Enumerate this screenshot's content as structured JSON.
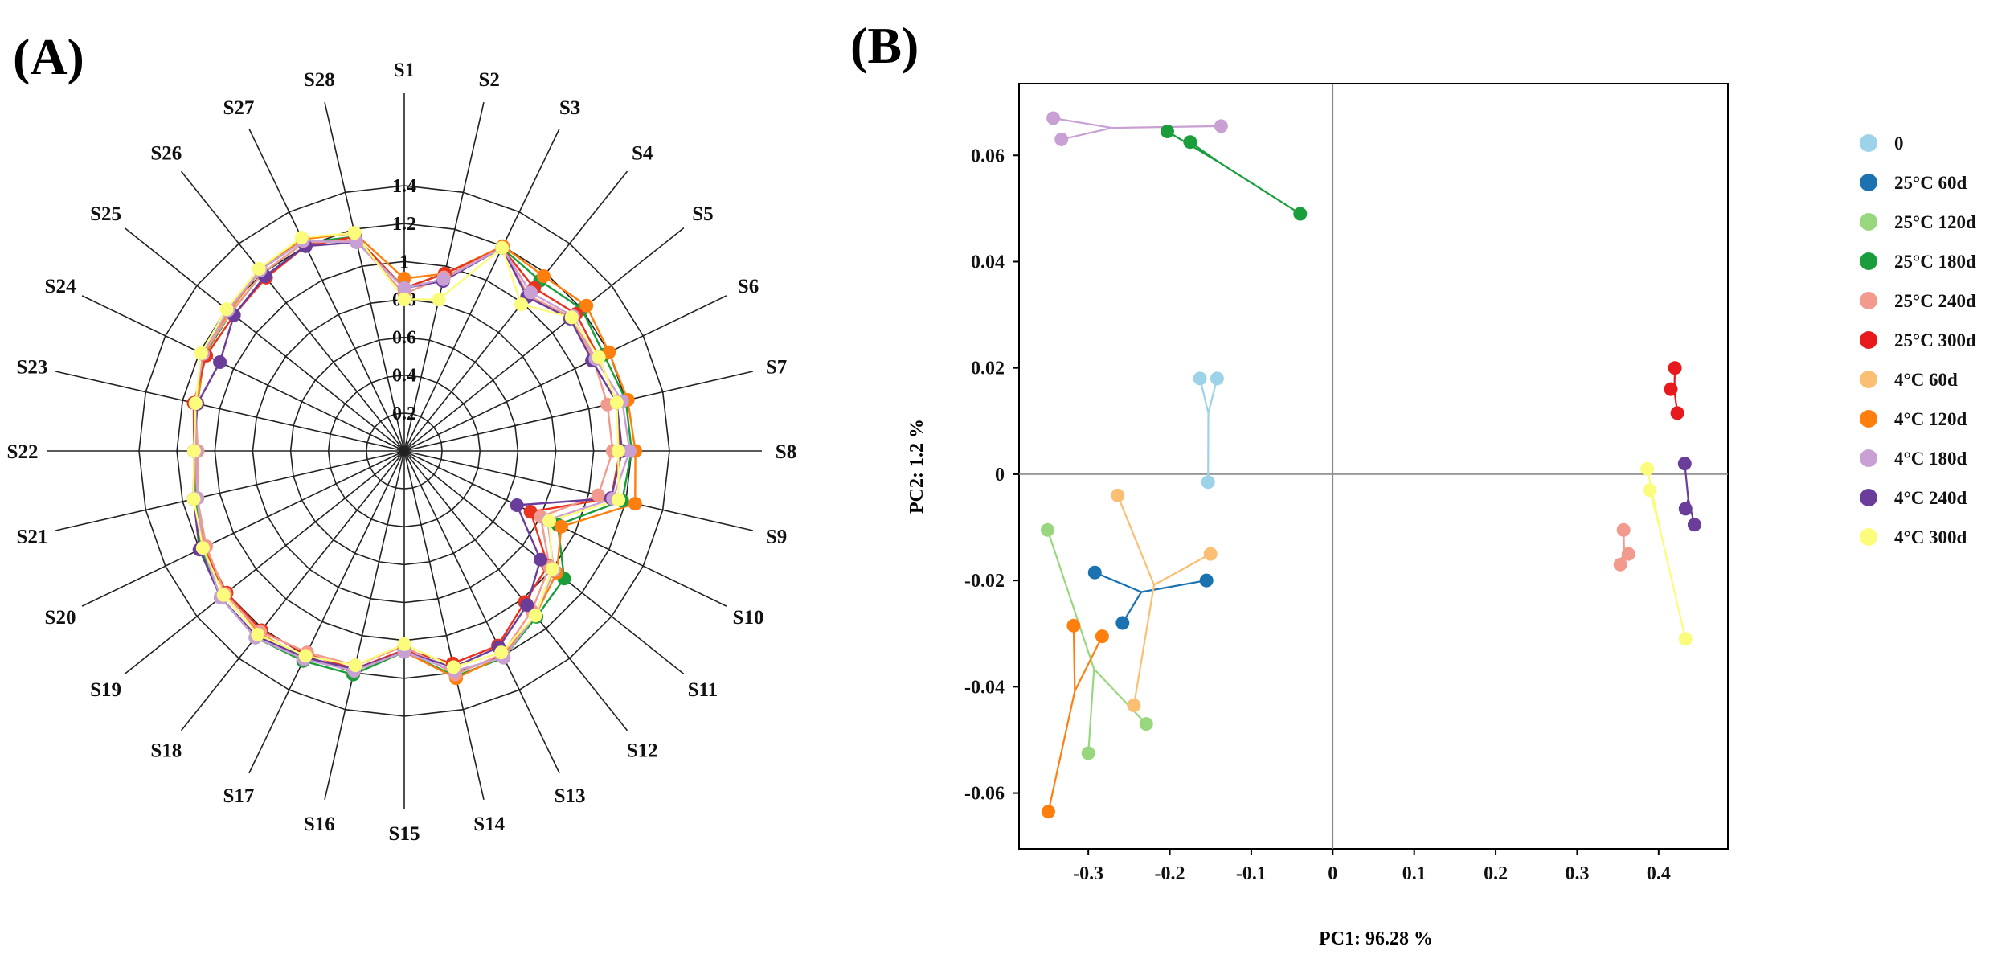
{
  "figure": {
    "panel_a_label": "(A)",
    "panel_b_label": "(B)"
  },
  "chart_data": [
    {
      "type": "radar",
      "panel": "(A)",
      "axes": [
        "S1",
        "S2",
        "S3",
        "S4",
        "S5",
        "S6",
        "S7",
        "S8",
        "S9",
        "S10",
        "S11",
        "S12",
        "S13",
        "S14",
        "S15",
        "S16",
        "S17",
        "S18",
        "S19",
        "S20",
        "S21",
        "S22",
        "S23",
        "S24",
        "S25",
        "S26",
        "S27",
        "S28"
      ],
      "rings": [
        0.2,
        0.4,
        0.6,
        0.8,
        1.0,
        1.2,
        1.4
      ],
      "ring_labels": [
        "0.2",
        "0.4",
        "0.6",
        "0.8",
        "1",
        "1.2",
        "1.4"
      ],
      "rmax": 1.4,
      "series": [
        {
          "name": "green",
          "color": "#1a9e3c",
          "values": [
            0.86,
            0.96,
            1.19,
            1.15,
            1.2,
            1.17,
            1.2,
            1.2,
            1.18,
            0.9,
            1.08,
            1.12,
            1.21,
            1.22,
            1.06,
            1.21,
            1.23,
            1.26,
            1.24,
            1.19,
            1.13,
            1.11,
            1.12,
            1.17,
            1.17,
            1.2,
            1.22,
            1.16
          ]
        },
        {
          "name": "orange",
          "color": "#ff7f0e",
          "values": [
            0.91,
            0.96,
            1.2,
            1.18,
            1.23,
            1.2,
            1.21,
            1.22,
            1.25,
            0.92,
            1.03,
            1.11,
            1.2,
            1.23,
            1.06,
            1.19,
            1.21,
            1.23,
            1.2,
            1.17,
            1.12,
            1.11,
            1.12,
            1.17,
            1.18,
            1.22,
            1.24,
            1.18
          ]
        },
        {
          "name": "red",
          "color": "#e8331f",
          "values": [
            0.86,
            0.96,
            1.19,
            1.1,
            1.16,
            1.14,
            1.15,
            1.14,
            1.12,
            0.74,
            0.97,
            1.02,
            1.14,
            1.15,
            1.05,
            1.18,
            1.19,
            1.21,
            1.2,
            1.18,
            1.14,
            1.11,
            1.14,
            1.16,
            1.15,
            1.17,
            1.2,
            1.16
          ]
        },
        {
          "name": "salmon",
          "color": "#f39a8e",
          "values": [
            0.83,
            0.94,
            1.19,
            1.05,
            1.13,
            1.11,
            1.1,
            1.1,
            1.05,
            0.8,
            0.98,
            1.08,
            1.19,
            1.21,
            1.03,
            1.16,
            1.18,
            1.22,
            1.21,
            1.16,
            1.12,
            1.09,
            1.13,
            1.18,
            1.17,
            1.2,
            1.22,
            1.14
          ]
        },
        {
          "name": "purple",
          "color": "#6a3d9a",
          "values": [
            0.86,
            0.92,
            1.19,
            1.04,
            1.12,
            1.1,
            1.15,
            1.15,
            1.12,
            0.66,
            0.92,
            1.04,
            1.15,
            1.17,
            1.06,
            1.18,
            1.21,
            1.25,
            1.24,
            1.2,
            1.14,
            1.11,
            1.12,
            1.08,
            1.15,
            1.18,
            1.2,
            1.13
          ]
        },
        {
          "name": "violet",
          "color": "#c9a0d3",
          "values": [
            0.86,
            0.93,
            1.19,
            1.07,
            1.14,
            1.12,
            1.18,
            1.19,
            1.13,
            0.84,
            1.01,
            1.11,
            1.21,
            1.19,
            1.06,
            1.19,
            1.22,
            1.26,
            1.24,
            1.18,
            1.12,
            1.1,
            1.13,
            1.18,
            1.19,
            1.22,
            1.23,
            1.13
          ]
        },
        {
          "name": "yellow",
          "color": "#fcfc7c",
          "values": [
            0.8,
            0.82,
            1.19,
            0.99,
            1.13,
            1.14,
            1.15,
            1.13,
            1.16,
            0.85,
            1.0,
            1.11,
            1.18,
            1.17,
            1.02,
            1.16,
            1.2,
            1.24,
            1.22,
            1.18,
            1.14,
            1.11,
            1.13,
            1.19,
            1.2,
            1.23,
            1.25,
            1.18
          ]
        }
      ]
    },
    {
      "type": "scatter",
      "panel": "(B)",
      "xlabel": "PC1:  96.28 %",
      "ylabel": "PC2:  1.2 %",
      "xlim": [
        -0.385,
        0.485
      ],
      "ylim": [
        -0.0705,
        0.0735
      ],
      "xticks": [
        -0.3,
        -0.2,
        -0.1,
        0,
        0.1,
        0.2,
        0.3,
        0.4
      ],
      "xtick_labels": [
        "-0.3",
        "-0.2",
        "-0.1",
        "0",
        "0.1",
        "0.2",
        "0.3",
        "0.4"
      ],
      "yticks": [
        -0.06,
        -0.04,
        -0.02,
        0,
        0.02,
        0.04,
        0.06
      ],
      "ytick_labels": [
        "-0.06",
        "-0.04",
        "-0.02",
        "0",
        "0.02",
        "0.04",
        "0.06"
      ],
      "reference_lines": {
        "x": 0,
        "y": 0
      },
      "series": [
        {
          "name": "0",
          "color": "#9dd3e8",
          "points": [
            [
              -0.163,
              0.018
            ],
            [
              -0.142,
              0.018
            ],
            [
              -0.153,
              -0.0015
            ]
          ]
        },
        {
          "name": "25°C 60d",
          "color": "#1a72b0",
          "points": [
            [
              -0.292,
              -0.0185
            ],
            [
              -0.155,
              -0.02
            ],
            [
              -0.258,
              -0.028
            ]
          ]
        },
        {
          "name": "25°C 120d",
          "color": "#98d77d",
          "points": [
            [
              -0.35,
              -0.0105
            ],
            [
              -0.3,
              -0.0525
            ],
            [
              -0.229,
              -0.047
            ]
          ]
        },
        {
          "name": "25°C 180d",
          "color": "#1a9e3c",
          "points": [
            [
              -0.203,
              0.0645
            ],
            [
              -0.175,
              0.0625
            ],
            [
              -0.04,
              0.049
            ]
          ]
        },
        {
          "name": "25°C 240d",
          "color": "#f39a8e",
          "points": [
            [
              0.357,
              -0.0105
            ],
            [
              0.363,
              -0.015
            ],
            [
              0.353,
              -0.017
            ]
          ]
        },
        {
          "name": "25°C 300d",
          "color": "#e8191c",
          "points": [
            [
              0.42,
              0.02
            ],
            [
              0.415,
              0.016
            ],
            [
              0.423,
              0.0115
            ]
          ]
        },
        {
          "name": "4°C 60d",
          "color": "#fbbf74",
          "points": [
            [
              -0.264,
              -0.004
            ],
            [
              -0.15,
              -0.015
            ],
            [
              -0.244,
              -0.0435
            ]
          ]
        },
        {
          "name": "4°C 120d",
          "color": "#ff7f0e",
          "points": [
            [
              -0.318,
              -0.0285
            ],
            [
              -0.283,
              -0.0305
            ],
            [
              -0.349,
              -0.0635
            ]
          ]
        },
        {
          "name": "4°C 180d",
          "color": "#c9a0d3",
          "points": [
            [
              -0.343,
              0.067
            ],
            [
              -0.333,
              0.063
            ],
            [
              -0.137,
              0.0655
            ]
          ]
        },
        {
          "name": "4°C 240d",
          "color": "#6a3d9a",
          "points": [
            [
              0.432,
              0.002
            ],
            [
              0.433,
              -0.0065
            ],
            [
              0.444,
              -0.0095
            ]
          ]
        },
        {
          "name": "4°C 300d",
          "color": "#fcfc7c",
          "points": [
            [
              0.386,
              0.001
            ],
            [
              0.389,
              -0.003
            ],
            [
              0.433,
              -0.031
            ]
          ]
        }
      ]
    }
  ]
}
